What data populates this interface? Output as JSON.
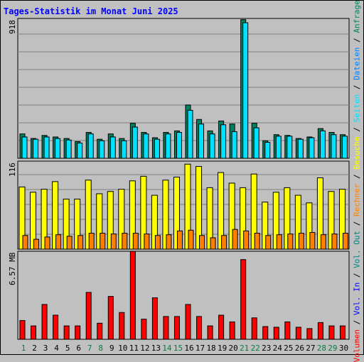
{
  "title": "Tages-Statistik im Monat Juni 2025",
  "colors": {
    "background": "#c0c0c0",
    "anfragen": "#008060",
    "dateien": "#0080ff",
    "seiten": "#00e0ff",
    "besuche": "#ffff00",
    "rechner": "#ff8000",
    "vol_out": "#008080",
    "vol_in": "#0000ff",
    "volumen": "#ff0000",
    "weekend_label": "#008040",
    "weekday_label": "#000000"
  },
  "legend": {
    "volumen": "Volumen",
    "vol_in": "Vol. In",
    "vol_out": "Vol. Out",
    "rechner": "Rechner",
    "besuche": "Besuche",
    "seiten": "Seiten",
    "dateien": "Dateien",
    "anfragen": "Anfragen",
    "separator": " / "
  },
  "chart_data": [
    {
      "type": "bar",
      "panel": "hits",
      "ymax_label": "918",
      "ylim": [
        0,
        918
      ],
      "categories": [
        "1",
        "2",
        "3",
        "4",
        "5",
        "6",
        "7",
        "8",
        "9",
        "10",
        "11",
        "12",
        "13",
        "14",
        "15",
        "16",
        "17",
        "18",
        "19",
        "20",
        "21",
        "22",
        "23",
        "24",
        "25",
        "26",
        "27",
        "28",
        "29",
        "30"
      ],
      "weekend_days": [
        "1",
        "7",
        "8",
        "14",
        "15",
        "21",
        "22",
        "28",
        "29"
      ],
      "series": [
        {
          "name": "Anfragen",
          "values": [
            160,
            130,
            150,
            140,
            130,
            110,
            170,
            125,
            160,
            130,
            230,
            170,
            135,
            170,
            180,
            350,
            255,
            180,
            245,
            225,
            910,
            230,
            115,
            155,
            150,
            130,
            140,
            195,
            170,
            155
          ]
        },
        {
          "name": "Dateien",
          "values": [
            140,
            125,
            140,
            130,
            120,
            100,
            160,
            115,
            140,
            115,
            205,
            160,
            125,
            160,
            170,
            315,
            225,
            160,
            220,
            175,
            890,
            200,
            105,
            145,
            145,
            125,
            135,
            180,
            155,
            145
          ]
        }
      ]
    },
    {
      "type": "bar",
      "panel": "visits",
      "ymax_label": "116",
      "ylim": [
        0,
        116
      ],
      "categories": [
        "1",
        "2",
        "3",
        "4",
        "5",
        "6",
        "7",
        "8",
        "9",
        "10",
        "11",
        "12",
        "13",
        "14",
        "15",
        "16",
        "17",
        "18",
        "19",
        "20",
        "21",
        "22",
        "23",
        "24",
        "25",
        "26",
        "27",
        "28",
        "29",
        "30"
      ],
      "series": [
        {
          "name": "Besuche",
          "values": [
            82,
            75,
            79,
            89,
            66,
            66,
            91,
            73,
            76,
            79,
            90,
            96,
            71,
            91,
            95,
            112,
            109,
            81,
            101,
            87,
            81,
            99,
            62,
            75,
            81,
            71,
            61,
            94,
            76,
            79
          ]
        },
        {
          "name": "Rechner",
          "values": [
            18,
            13,
            16,
            19,
            17,
            18,
            21,
            21,
            20,
            21,
            21,
            20,
            18,
            19,
            24,
            25,
            18,
            15,
            18,
            26,
            24,
            21,
            18,
            19,
            20,
            21,
            22,
            19,
            20,
            21
          ]
        }
      ]
    },
    {
      "type": "bar",
      "panel": "volume",
      "ymax_label": "6.57 MB",
      "ylim": [
        0,
        6.57
      ],
      "categories": [
        "1",
        "2",
        "3",
        "4",
        "5",
        "6",
        "7",
        "8",
        "9",
        "10",
        "11",
        "12",
        "13",
        "14",
        "15",
        "16",
        "17",
        "18",
        "19",
        "20",
        "21",
        "22",
        "23",
        "24",
        "25",
        "26",
        "27",
        "28",
        "29",
        "30"
      ],
      "series": [
        {
          "name": "Volumen",
          "values": [
            1.4,
            1.0,
            2.6,
            1.8,
            1.0,
            1.0,
            3.5,
            1.2,
            3.2,
            2.0,
            6.57,
            1.5,
            3.1,
            1.7,
            1.7,
            2.6,
            1.7,
            1.0,
            1.8,
            1.3,
            5.95,
            1.6,
            0.95,
            0.9,
            1.3,
            0.9,
            0.8,
            1.25,
            1.0,
            1.0
          ]
        }
      ]
    }
  ]
}
